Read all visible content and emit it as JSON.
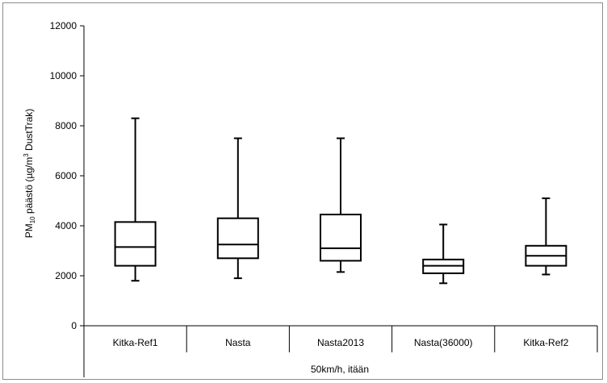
{
  "chart_data": {
    "type": "box",
    "ylabel": "PM",
    "ylabel_sub": "10",
    "ylabel_rest": " päästö (µg/m",
    "ylabel_sup": "3",
    "ylabel_end": " DustTrak)",
    "group_label": "50km/h, itään",
    "ylim": [
      0,
      12000
    ],
    "yticks": [
      "0",
      "2000",
      "4000",
      "6000",
      "8000",
      "10000",
      "12000"
    ],
    "categories": [
      "Kitka-Ref1",
      "Nasta",
      "Nasta2013",
      "Nasta(36000)",
      "Kitka-Ref2"
    ],
    "boxes": [
      {
        "min": 1800,
        "q1": 2400,
        "median": 3150,
        "q3": 4150,
        "max": 8300
      },
      {
        "min": 1900,
        "q1": 2700,
        "median": 3250,
        "q3": 4300,
        "max": 7500
      },
      {
        "min": 2150,
        "q1": 2600,
        "median": 3100,
        "q3": 4450,
        "max": 7500
      },
      {
        "min": 1700,
        "q1": 2100,
        "median": 2400,
        "q3": 2650,
        "max": 4050
      },
      {
        "min": 2050,
        "q1": 2400,
        "median": 2800,
        "q3": 3200,
        "max": 5100
      }
    ],
    "grid": false,
    "legend": "none"
  }
}
